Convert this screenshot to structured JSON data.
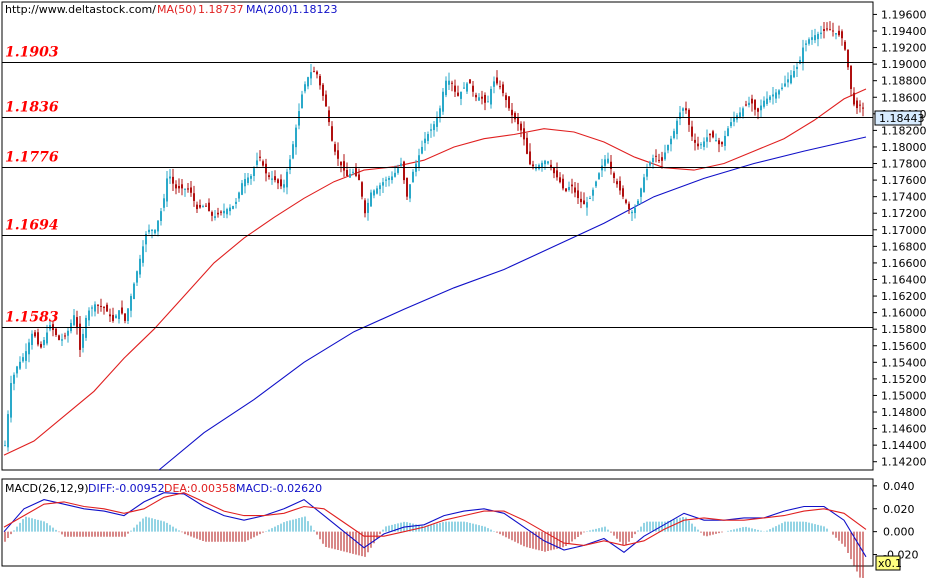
{
  "header": {
    "source": "http://www.deltastock.com/",
    "ma50_label": "MA(50)",
    "ma50_value": "1.18737",
    "ma200_label": "MA(200)",
    "ma200_value": "1.18123"
  },
  "macd_header": {
    "name": "MACD(26,12,9)",
    "diff": "DIFF:-0.00952",
    "dea": "DEA:0.00358",
    "macd": "MACD:-0.02620"
  },
  "last_price": "1.18443",
  "scale_badge": "x0.1",
  "colors": {
    "up": "#2aa9c9",
    "down": "#b01010",
    "ma50": "#e02020",
    "ma200": "#1010c8",
    "levels": "#000000",
    "level_text": "#ff0000"
  },
  "chart_data": [
    {
      "type": "candlestick",
      "title": "",
      "xlabel": "",
      "ylabel": "",
      "ylim": [
        1.141,
        1.1975
      ],
      "y_ticks": [
        "1.19600",
        "1.19400",
        "1.19200",
        "1.19000",
        "1.18800",
        "1.18600",
        "1.18400",
        "1.18200",
        "1.18000",
        "1.17800",
        "1.17600",
        "1.17400",
        "1.17200",
        "1.17000",
        "1.16800",
        "1.16600",
        "1.16400",
        "1.16200",
        "1.16000",
        "1.15800",
        "1.15600",
        "1.15400",
        "1.15200",
        "1.15000",
        "1.14800",
        "1.14600",
        "1.14400",
        "1.14200"
      ],
      "levels": [
        {
          "value": 1.1903,
          "label": "1.1903"
        },
        {
          "value": 1.1836,
          "label": "1.1836"
        },
        {
          "value": 1.1776,
          "label": "1.1776"
        },
        {
          "value": 1.1694,
          "label": "1.1694"
        },
        {
          "value": 1.1583,
          "label": "1.1583"
        }
      ],
      "close_path": [
        [
          0,
          1.144
        ],
        [
          6,
          1.1515
        ],
        [
          12,
          1.1535
        ],
        [
          20,
          1.155
        ],
        [
          28,
          1.1578
        ],
        [
          35,
          1.1555
        ],
        [
          45,
          1.1585
        ],
        [
          55,
          1.1565
        ],
        [
          62,
          1.1575
        ],
        [
          70,
          1.16
        ],
        [
          75,
          1.1555
        ],
        [
          82,
          1.16
        ],
        [
          90,
          1.161
        ],
        [
          100,
          1.1605
        ],
        [
          108,
          1.159
        ],
        [
          115,
          1.1605
        ],
        [
          120,
          1.159
        ],
        [
          128,
          1.163
        ],
        [
          135,
          1.1665
        ],
        [
          142,
          1.17
        ],
        [
          150,
          1.17
        ],
        [
          158,
          1.173
        ],
        [
          163,
          1.177
        ],
        [
          170,
          1.175
        ],
        [
          178,
          1.175
        ],
        [
          185,
          1.1748
        ],
        [
          192,
          1.1725
        ],
        [
          200,
          1.173
        ],
        [
          208,
          1.1715
        ],
        [
          215,
          1.172
        ],
        [
          222,
          1.1725
        ],
        [
          230,
          1.173
        ],
        [
          238,
          1.176
        ],
        [
          246,
          1.1765
        ],
        [
          254,
          1.179
        ],
        [
          262,
          1.1765
        ],
        [
          270,
          1.176
        ],
        [
          278,
          1.175
        ],
        [
          286,
          1.179
        ],
        [
          292,
          1.183
        ],
        [
          298,
          1.187
        ],
        [
          305,
          1.189
        ],
        [
          311,
          1.1892
        ],
        [
          316,
          1.187
        ],
        [
          322,
          1.1845
        ],
        [
          328,
          1.18
        ],
        [
          335,
          1.178
        ],
        [
          342,
          1.1765
        ],
        [
          348,
          1.177
        ],
        [
          354,
          1.176
        ],
        [
          360,
          1.172
        ],
        [
          366,
          1.1745
        ],
        [
          372,
          1.175
        ],
        [
          380,
          1.176
        ],
        [
          388,
          1.1765
        ],
        [
          396,
          1.178
        ],
        [
          402,
          1.174
        ],
        [
          408,
          1.177
        ],
        [
          414,
          1.179
        ],
        [
          420,
          1.181
        ],
        [
          428,
          1.1825
        ],
        [
          434,
          1.184
        ],
        [
          440,
          1.188
        ],
        [
          446,
          1.188
        ],
        [
          452,
          1.186
        ],
        [
          458,
          1.187
        ],
        [
          464,
          1.188
        ],
        [
          470,
          1.186
        ],
        [
          476,
          1.186
        ],
        [
          482,
          1.185
        ],
        [
          488,
          1.188
        ],
        [
          494,
          1.1875
        ],
        [
          500,
          1.186
        ],
        [
          506,
          1.184
        ],
        [
          512,
          1.183
        ],
        [
          518,
          1.1815
        ],
        [
          524,
          1.178
        ],
        [
          530,
          1.1775
        ],
        [
          536,
          1.178
        ],
        [
          542,
          1.1785
        ],
        [
          548,
          1.177
        ],
        [
          554,
          1.176
        ],
        [
          560,
          1.1745
        ],
        [
          566,
          1.1755
        ],
        [
          572,
          1.174
        ],
        [
          578,
          1.173
        ],
        [
          584,
          1.1735
        ],
        [
          590,
          1.1755
        ],
        [
          596,
          1.1775
        ],
        [
          602,
          1.179
        ],
        [
          608,
          1.1765
        ],
        [
          614,
          1.175
        ],
        [
          620,
          1.1735
        ],
        [
          626,
          1.172
        ],
        [
          632,
          1.173
        ],
        [
          638,
          1.176
        ],
        [
          644,
          1.178
        ],
        [
          650,
          1.179
        ],
        [
          656,
          1.178
        ],
        [
          662,
          1.18
        ],
        [
          668,
          1.1815
        ],
        [
          674,
          1.184
        ],
        [
          680,
          1.185
        ],
        [
          686,
          1.1815
        ],
        [
          692,
          1.18
        ],
        [
          698,
          1.1805
        ],
        [
          704,
          1.1815
        ],
        [
          710,
          1.181
        ],
        [
          716,
          1.18
        ],
        [
          722,
          1.182
        ],
        [
          728,
          1.1835
        ],
        [
          734,
          1.184
        ],
        [
          740,
          1.185
        ],
        [
          746,
          1.1855
        ],
        [
          752,
          1.184
        ],
        [
          758,
          1.1855
        ],
        [
          764,
          1.186
        ],
        [
          770,
          1.1865
        ],
        [
          776,
          1.187
        ],
        [
          782,
          1.188
        ],
        [
          788,
          1.189
        ],
        [
          794,
          1.19
        ],
        [
          798,
          1.192
        ],
        [
          804,
          1.193
        ],
        [
          810,
          1.1935
        ],
        [
          816,
          1.1938
        ],
        [
          822,
          1.1942
        ],
        [
          828,
          1.194
        ],
        [
          834,
          1.1935
        ],
        [
          838,
          1.193
        ],
        [
          842,
          1.1905
        ],
        [
          846,
          1.187
        ],
        [
          850,
          1.1845
        ],
        [
          855,
          1.185
        ],
        [
          860,
          1.1845
        ]
      ],
      "series": [
        {
          "name": "MA(50)",
          "points": [
            [
              0,
              1.1428
            ],
            [
              30,
              1.1445
            ],
            [
              60,
              1.1475
            ],
            [
              90,
              1.1505
            ],
            [
              120,
              1.1545
            ],
            [
              150,
              1.158
            ],
            [
              180,
              1.162
            ],
            [
              210,
              1.166
            ],
            [
              240,
              1.169
            ],
            [
              270,
              1.1715
            ],
            [
              300,
              1.1738
            ],
            [
              330,
              1.1758
            ],
            [
              360,
              1.1772
            ],
            [
              390,
              1.1776
            ],
            [
              420,
              1.1784
            ],
            [
              450,
              1.18
            ],
            [
              480,
              1.181
            ],
            [
              510,
              1.1815
            ],
            [
              540,
              1.1822
            ],
            [
              570,
              1.1818
            ],
            [
              600,
              1.1806
            ],
            [
              630,
              1.1788
            ],
            [
              660,
              1.1775
            ],
            [
              690,
              1.1772
            ],
            [
              720,
              1.178
            ],
            [
              750,
              1.1795
            ],
            [
              780,
              1.181
            ],
            [
              810,
              1.1832
            ],
            [
              840,
              1.1858
            ],
            [
              862,
              1.187
            ]
          ]
        },
        {
          "name": "MA(200)",
          "points": [
            [
              155,
              1.141
            ],
            [
              200,
              1.1455
            ],
            [
              250,
              1.1495
            ],
            [
              300,
              1.154
            ],
            [
              350,
              1.1577
            ],
            [
              400,
              1.1604
            ],
            [
              450,
              1.163
            ],
            [
              500,
              1.1652
            ],
            [
              550,
              1.168
            ],
            [
              600,
              1.1708
            ],
            [
              650,
              1.174
            ],
            [
              700,
              1.1762
            ],
            [
              750,
              1.178
            ],
            [
              800,
              1.1795
            ],
            [
              862,
              1.1812
            ]
          ]
        }
      ]
    },
    {
      "type": "bar",
      "title": "MACD(26,12,9)",
      "ylim": [
        -0.03,
        0.046
      ],
      "y_ticks": [
        "0.040",
        "0.020",
        "0.000",
        "-0.020"
      ],
      "series": [
        {
          "name": "DIFF",
          "points": [
            [
              0,
              0.0
            ],
            [
              20,
              0.02
            ],
            [
              40,
              0.028
            ],
            [
              60,
              0.024
            ],
            [
              80,
              0.02
            ],
            [
              100,
              0.018
            ],
            [
              120,
              0.014
            ],
            [
              140,
              0.026
            ],
            [
              160,
              0.034
            ],
            [
              180,
              0.033
            ],
            [
              200,
              0.022
            ],
            [
              220,
              0.014
            ],
            [
              240,
              0.01
            ],
            [
              260,
              0.014
            ],
            [
              280,
              0.02
            ],
            [
              300,
              0.028
            ],
            [
              320,
              0.014
            ],
            [
              340,
              0.0
            ],
            [
              360,
              -0.014
            ],
            [
              380,
              -0.002
            ],
            [
              400,
              0.004
            ],
            [
              420,
              0.006
            ],
            [
              440,
              0.014
            ],
            [
              460,
              0.018
            ],
            [
              480,
              0.02
            ],
            [
              500,
              0.016
            ],
            [
              520,
              0.004
            ],
            [
              540,
              -0.008
            ],
            [
              560,
              -0.016
            ],
            [
              580,
              -0.012
            ],
            [
              600,
              -0.006
            ],
            [
              620,
              -0.018
            ],
            [
              640,
              -0.004
            ],
            [
              660,
              0.006
            ],
            [
              680,
              0.016
            ],
            [
              700,
              0.01
            ],
            [
              720,
              0.01
            ],
            [
              740,
              0.012
            ],
            [
              760,
              0.012
            ],
            [
              780,
              0.018
            ],
            [
              800,
              0.022
            ],
            [
              820,
              0.022
            ],
            [
              840,
              0.01
            ],
            [
              862,
              -0.022
            ]
          ]
        },
        {
          "name": "DEA",
          "points": [
            [
              0,
              0.004
            ],
            [
              20,
              0.014
            ],
            [
              40,
              0.024
            ],
            [
              60,
              0.026
            ],
            [
              80,
              0.022
            ],
            [
              100,
              0.02
            ],
            [
              120,
              0.016
            ],
            [
              140,
              0.02
            ],
            [
              160,
              0.03
            ],
            [
              180,
              0.034
            ],
            [
              200,
              0.026
            ],
            [
              220,
              0.018
            ],
            [
              240,
              0.014
            ],
            [
              260,
              0.014
            ],
            [
              280,
              0.016
            ],
            [
              300,
              0.022
            ],
            [
              320,
              0.02
            ],
            [
              340,
              0.008
            ],
            [
              360,
              -0.004
            ],
            [
              380,
              -0.004
            ],
            [
              400,
              0.0
            ],
            [
              420,
              0.004
            ],
            [
              440,
              0.01
            ],
            [
              460,
              0.014
            ],
            [
              480,
              0.018
            ],
            [
              500,
              0.018
            ],
            [
              520,
              0.01
            ],
            [
              540,
              0.0
            ],
            [
              560,
              -0.01
            ],
            [
              580,
              -0.012
            ],
            [
              600,
              -0.008
            ],
            [
              620,
              -0.012
            ],
            [
              640,
              -0.008
            ],
            [
              660,
              0.002
            ],
            [
              680,
              0.01
            ],
            [
              700,
              0.012
            ],
            [
              720,
              0.01
            ],
            [
              740,
              0.01
            ],
            [
              760,
              0.012
            ],
            [
              780,
              0.014
            ],
            [
              800,
              0.018
            ],
            [
              820,
              0.02
            ],
            [
              840,
              0.016
            ],
            [
              862,
              0.002
            ]
          ]
        }
      ]
    }
  ]
}
